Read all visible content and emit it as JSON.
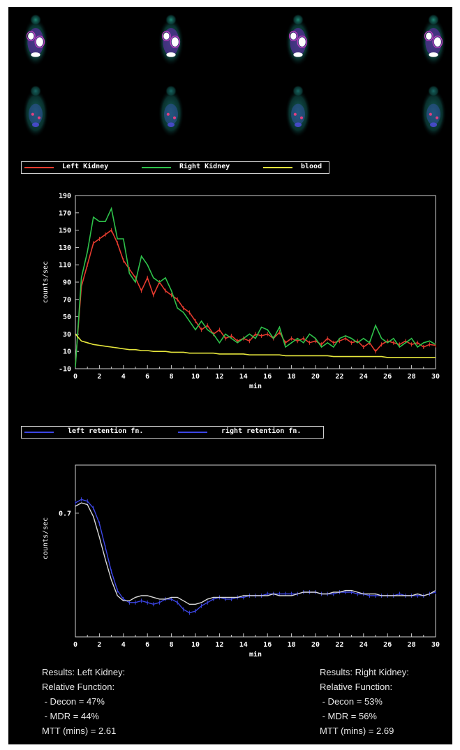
{
  "colors": {
    "left_kidney": "#e63b2e",
    "right_kidney": "#2ec24a",
    "blood": "#e6e63c",
    "retention": "#3c46e6",
    "retention_alt": "#d8d8d8",
    "axes": "#d0d0d0"
  },
  "scan_rows": [
    {
      "frames": 4,
      "intensity": "high"
    },
    {
      "frames": 4,
      "intensity": "low"
    }
  ],
  "legend1": [
    {
      "label": "Left Kidney",
      "color_key": "left_kidney"
    },
    {
      "label": "Right Kidney",
      "color_key": "right_kidney"
    },
    {
      "label": "blood",
      "color_key": "blood"
    }
  ],
  "legend2": [
    {
      "label": "left retention fn.",
      "color_key": "retention"
    },
    {
      "label": "right retention fn.",
      "color_key": "retention"
    }
  ],
  "results_left": {
    "title": "Results: Left Kidney:",
    "relative": "Relative Function:",
    "decon": " - Decon = 47%",
    "mdr": " - MDR = 44%",
    "mtt": "MTT (mins) = 2.61"
  },
  "results_right": {
    "title": "Results: Right Kidney:",
    "relative": "Relative Function:",
    "decon": " - Decon = 53%",
    "mdr": " - MDR = 56%",
    "mtt": "MTT (mins) = 2.69"
  },
  "chart_data": [
    {
      "type": "line",
      "title": "",
      "xlabel": "min",
      "ylabel": "counts/sec",
      "xlim": [
        0,
        30
      ],
      "ylim": [
        -10,
        190
      ],
      "xticks": [
        0,
        2,
        4,
        6,
        8,
        10,
        12,
        14,
        16,
        18,
        20,
        22,
        24,
        26,
        28,
        30
      ],
      "yticks": [
        -10,
        10,
        30,
        50,
        70,
        90,
        110,
        130,
        150,
        170,
        190
      ],
      "grid": false,
      "x": [
        0,
        0.5,
        1,
        1.5,
        2,
        2.5,
        3,
        3.5,
        4,
        4.5,
        5,
        5.5,
        6,
        6.5,
        7,
        7.5,
        8,
        8.5,
        9,
        9.5,
        10,
        10.5,
        11,
        11.5,
        12,
        12.5,
        13,
        13.5,
        14,
        14.5,
        15,
        15.5,
        16,
        16.5,
        17,
        17.5,
        18,
        18.5,
        19,
        19.5,
        20,
        20.5,
        21,
        21.5,
        22,
        22.5,
        23,
        23.5,
        24,
        24.5,
        25,
        25.5,
        26,
        26.5,
        27,
        27.5,
        28,
        28.5,
        29,
        29.5,
        30
      ],
      "series": [
        {
          "name": "Left Kidney",
          "color_key": "left_kidney",
          "values": [
            -5,
            85,
            110,
            135,
            140,
            145,
            150,
            135,
            115,
            105,
            95,
            80,
            95,
            75,
            90,
            80,
            75,
            70,
            60,
            55,
            45,
            35,
            40,
            30,
            35,
            25,
            28,
            22,
            25,
            22,
            30,
            28,
            30,
            25,
            32,
            20,
            25,
            22,
            25,
            20,
            22,
            18,
            25,
            20,
            22,
            25,
            20,
            22,
            15,
            20,
            10,
            18,
            22,
            20,
            18,
            22,
            18,
            20,
            15,
            18,
            17
          ]
        },
        {
          "name": "Right Kidney",
          "color_key": "right_kidney",
          "values": [
            -8,
            95,
            125,
            165,
            160,
            160,
            175,
            140,
            140,
            100,
            90,
            120,
            110,
            95,
            90,
            95,
            80,
            60,
            55,
            45,
            35,
            45,
            35,
            30,
            20,
            30,
            25,
            20,
            25,
            30,
            25,
            38,
            35,
            25,
            38,
            15,
            20,
            25,
            20,
            30,
            25,
            15,
            20,
            15,
            25,
            28,
            25,
            20,
            25,
            20,
            40,
            25,
            20,
            25,
            15,
            20,
            25,
            15,
            20,
            22,
            18
          ]
        },
        {
          "name": "blood",
          "color_key": "blood",
          "values": [
            30,
            22,
            20,
            18,
            17,
            16,
            15,
            14,
            13,
            12,
            12,
            11,
            11,
            10,
            10,
            10,
            9,
            9,
            9,
            8,
            8,
            8,
            8,
            8,
            7,
            7,
            7,
            7,
            7,
            6,
            6,
            6,
            6,
            6,
            6,
            5,
            5,
            5,
            5,
            5,
            5,
            5,
            5,
            4,
            4,
            4,
            4,
            4,
            4,
            4,
            4,
            4,
            3,
            3,
            3,
            3,
            3,
            3,
            3,
            3,
            3
          ]
        }
      ]
    },
    {
      "type": "line",
      "title": "",
      "xlabel": "min",
      "ylabel": "counts/sec",
      "xlim": [
        0,
        30
      ],
      "ylim": [
        0,
        1
      ],
      "yticks_labeled": [
        {
          "value": 0.72,
          "label": "0.7"
        }
      ],
      "xticks": [
        0,
        2,
        4,
        6,
        8,
        10,
        12,
        14,
        16,
        18,
        20,
        22,
        24,
        26,
        28,
        30
      ],
      "grid": false,
      "x": [
        0,
        0.5,
        1,
        1.5,
        2,
        2.5,
        3,
        3.5,
        4,
        4.5,
        5,
        5.5,
        6,
        6.5,
        7,
        7.5,
        8,
        8.5,
        9,
        9.5,
        10,
        10.5,
        11,
        11.5,
        12,
        12.5,
        13,
        13.5,
        14,
        14.5,
        15,
        15.5,
        16,
        16.5,
        17,
        17.5,
        18,
        18.5,
        19,
        19.5,
        20,
        20.5,
        21,
        21.5,
        22,
        22.5,
        23,
        23.5,
        24,
        24.5,
        25,
        25.5,
        26,
        26.5,
        27,
        27.5,
        28,
        28.5,
        29,
        29.5,
        30
      ],
      "series": [
        {
          "name": "left retention fn.",
          "color_key": "retention",
          "values": [
            0.78,
            0.8,
            0.79,
            0.75,
            0.66,
            0.52,
            0.38,
            0.27,
            0.22,
            0.2,
            0.2,
            0.21,
            0.2,
            0.19,
            0.2,
            0.22,
            0.22,
            0.2,
            0.16,
            0.14,
            0.15,
            0.18,
            0.2,
            0.22,
            0.23,
            0.22,
            0.22,
            0.23,
            0.23,
            0.24,
            0.24,
            0.24,
            0.25,
            0.25,
            0.25,
            0.25,
            0.25,
            0.25,
            0.26,
            0.26,
            0.26,
            0.25,
            0.25,
            0.25,
            0.26,
            0.26,
            0.26,
            0.25,
            0.25,
            0.24,
            0.24,
            0.24,
            0.24,
            0.24,
            0.25,
            0.24,
            0.24,
            0.24,
            0.24,
            0.25,
            0.26
          ]
        },
        {
          "name": "right retention fn.",
          "color_key": "retention",
          "values": [
            0.76,
            0.78,
            0.77,
            0.7,
            0.58,
            0.45,
            0.33,
            0.24,
            0.21,
            0.21,
            0.23,
            0.24,
            0.24,
            0.23,
            0.22,
            0.22,
            0.23,
            0.23,
            0.21,
            0.19,
            0.19,
            0.2,
            0.22,
            0.23,
            0.23,
            0.23,
            0.23,
            0.23,
            0.24,
            0.24,
            0.24,
            0.24,
            0.24,
            0.25,
            0.24,
            0.24,
            0.24,
            0.25,
            0.26,
            0.26,
            0.26,
            0.25,
            0.25,
            0.26,
            0.26,
            0.27,
            0.27,
            0.26,
            0.25,
            0.25,
            0.25,
            0.24,
            0.24,
            0.24,
            0.24,
            0.24,
            0.24,
            0.25,
            0.24,
            0.25,
            0.27
          ]
        }
      ]
    }
  ]
}
